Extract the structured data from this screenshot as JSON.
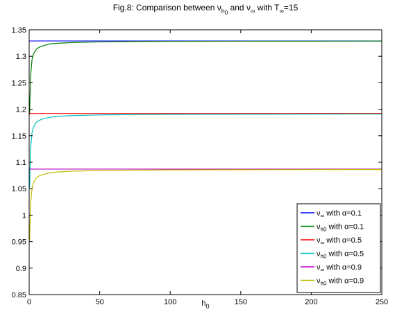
{
  "chart_data": {
    "type": "line",
    "title": {
      "parts": [
        {
          "text": "Fig.8: Comparison between ν"
        },
        {
          "text": "h",
          "sub": true
        },
        {
          "text": "0",
          "sub2": true
        },
        {
          "text": " and ν"
        },
        {
          "text": "∞",
          "sub": true
        },
        {
          "text": " with T"
        },
        {
          "text": "∞",
          "sub": true
        },
        {
          "text": "=15"
        }
      ]
    },
    "xlabel": {
      "main": "h",
      "sub": "0"
    },
    "ylabel": "",
    "xlim": [
      0,
      250
    ],
    "ylim": [
      0.85,
      1.35
    ],
    "x_ticks": [
      0,
      50,
      100,
      150,
      200,
      250
    ],
    "y_ticks": [
      0.85,
      0.9,
      0.95,
      1,
      1.05,
      1.1,
      1.15,
      1.2,
      1.25,
      1.3,
      1.35
    ],
    "y_tick_labels": [
      "0.85",
      "0.9",
      "0.95",
      "1",
      "1.05",
      "1.1",
      "1.15",
      "1.2",
      "1.25",
      "1.3",
      "1.35"
    ],
    "grid": false,
    "legend_position": "bottom-right",
    "series": [
      {
        "name": "ν∞ with α=0.1",
        "legend_sym": "ν",
        "legend_sub": "∞",
        "legend_rest": " with α=0.1",
        "color": "#0000ff",
        "kind": "constant",
        "x": [
          0,
          250
        ],
        "y": [
          1.329,
          1.329
        ]
      },
      {
        "name": "νh0 with α=0.1",
        "legend_sym": "ν",
        "legend_sub": "h0",
        "legend_rest": " with α=0.1",
        "color": "#008000",
        "kind": "curve",
        "x": [
          0.3,
          1,
          2,
          3,
          5,
          7,
          10,
          15,
          20,
          30,
          50,
          75,
          100,
          150,
          200,
          250
        ],
        "y": [
          1.19,
          1.262,
          1.293,
          1.304,
          1.313,
          1.317,
          1.32,
          1.3235,
          1.3245,
          1.326,
          1.3272,
          1.3279,
          1.3282,
          1.3285,
          1.3286,
          1.3287
        ]
      },
      {
        "name": "ν∞ with α=0.5",
        "legend_sym": "ν",
        "legend_sub": "∞",
        "legend_rest": " with α=0.5",
        "color": "#ff0000",
        "kind": "constant",
        "x": [
          0,
          250
        ],
        "y": [
          1.192,
          1.192
        ]
      },
      {
        "name": "νh0 with α=0.5",
        "legend_sym": "ν",
        "legend_sub": "h0",
        "legend_rest": " with α=0.5",
        "color": "#00bfbf",
        "kind": "curve",
        "x": [
          0.3,
          1,
          2,
          3,
          5,
          7,
          10,
          15,
          20,
          30,
          50,
          75,
          100,
          150,
          200,
          250
        ],
        "y": [
          1.052,
          1.125,
          1.155,
          1.166,
          1.175,
          1.179,
          1.182,
          1.185,
          1.1865,
          1.188,
          1.1893,
          1.19,
          1.1903,
          1.1906,
          1.1908,
          1.1909
        ]
      },
      {
        "name": "ν∞ with α=0.9",
        "legend_sym": "ν",
        "legend_sub": "∞",
        "legend_rest": " with α=0.9",
        "color": "#bf00bf",
        "kind": "constant",
        "x": [
          0,
          250
        ],
        "y": [
          1.087,
          1.087
        ]
      },
      {
        "name": "νh0 with α=0.9",
        "legend_sym": "ν",
        "legend_sub": "h0",
        "legend_rest": " with α=0.9",
        "color": "#bfbf00",
        "kind": "curve",
        "x": [
          0.3,
          1,
          2,
          3,
          5,
          7,
          10,
          15,
          20,
          30,
          50,
          75,
          100,
          150,
          200,
          250
        ],
        "y": [
          0.952,
          1.02,
          1.05,
          1.061,
          1.07,
          1.074,
          1.077,
          1.08,
          1.0815,
          1.083,
          1.0843,
          1.085,
          1.0854,
          1.0858,
          1.086,
          1.0861
        ]
      }
    ]
  }
}
